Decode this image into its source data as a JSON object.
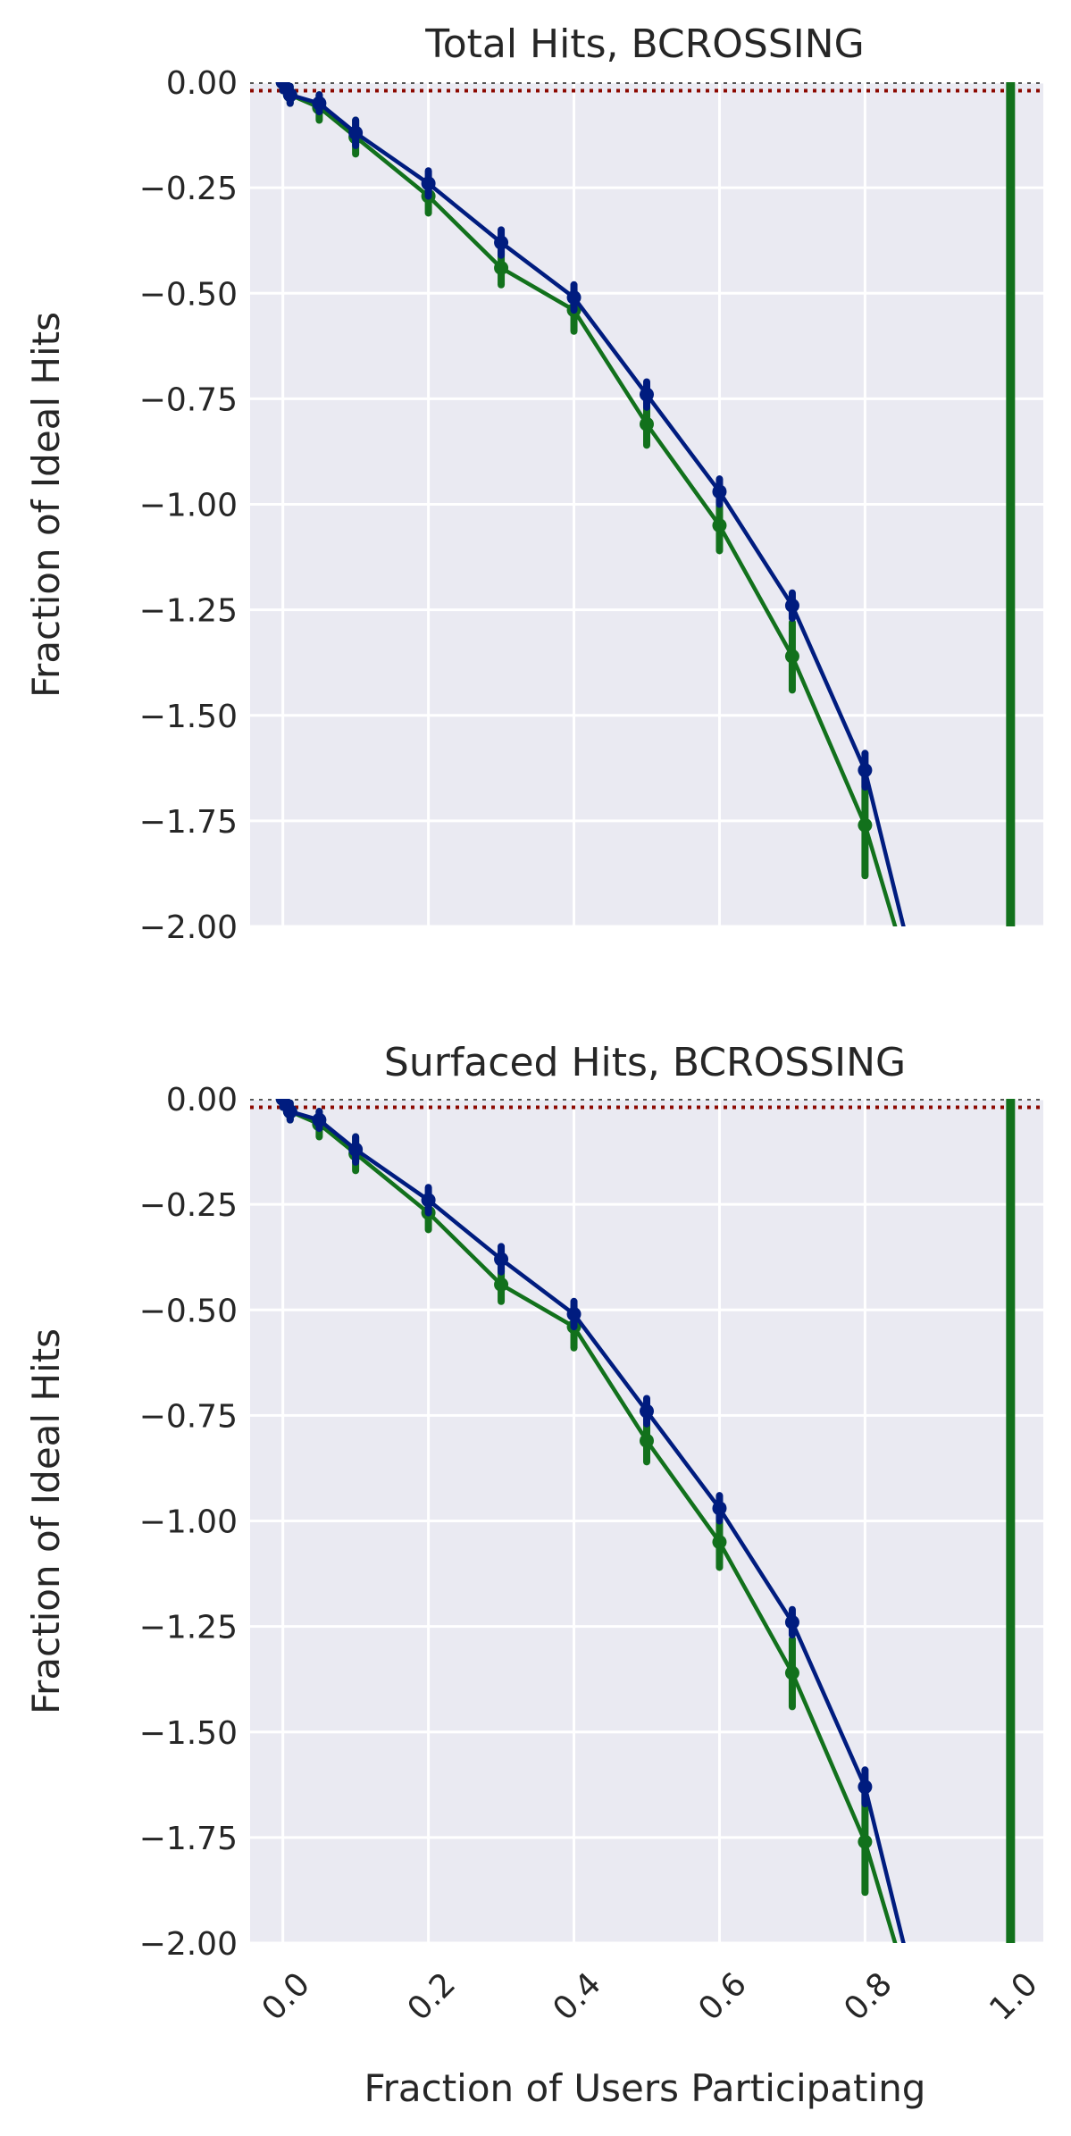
{
  "colors": {
    "background": "#eaeaf2",
    "grid": "#ffffff",
    "blue": "#001c7f",
    "green": "#12711c",
    "ref_red": "#8c0800",
    "ref_gray": "#555555"
  },
  "chart_data": [
    {
      "type": "line",
      "title": "Total Hits, BCROSSING",
      "xlabel": "",
      "ylabel": "Fraction of Ideal Hits",
      "xlim": [
        -0.045,
        1.045
      ],
      "ylim": [
        -2.0,
        0.0
      ],
      "xticks": [
        0.0,
        0.2,
        0.4,
        0.6,
        0.8,
        1.0
      ],
      "xtick_labels": [
        "0.0",
        "0.2",
        "0.4",
        "0.6",
        "0.8",
        "1.0"
      ],
      "yticks": [
        0.0,
        -0.25,
        -0.5,
        -0.75,
        -1.0,
        -1.25,
        -1.5,
        -1.75,
        -2.0
      ],
      "ytick_labels": [
        "0.00",
        "−0.25",
        "−0.50",
        "−0.75",
        "−1.00",
        "−1.25",
        "−1.50",
        "−1.75",
        "−2.00"
      ],
      "xticklabels_visible": false,
      "grid": true,
      "reference_lines": [
        {
          "orientation": "horizontal",
          "y": 0.0,
          "style": "dotted",
          "color": "#555555"
        },
        {
          "orientation": "horizontal",
          "y": -0.02,
          "style": "dotted",
          "color": "#8c0800"
        },
        {
          "orientation": "vertical",
          "x": 1.0,
          "style": "solid",
          "color": "#12711c"
        }
      ],
      "series": [
        {
          "color": "#12711c",
          "x": [
            0.0,
            0.01,
            0.05,
            0.1,
            0.2,
            0.3,
            0.4,
            0.5,
            0.6,
            0.7,
            0.8,
            0.85
          ],
          "y": [
            0.0,
            -0.03,
            -0.06,
            -0.13,
            -0.27,
            -0.44,
            -0.54,
            -0.81,
            -1.05,
            -1.36,
            -1.76,
            -2.05
          ],
          "err": [
            0.02,
            0.02,
            0.03,
            0.04,
            0.04,
            0.04,
            0.05,
            0.05,
            0.06,
            0.08,
            0.12,
            0.0
          ],
          "markers": [
            true,
            true,
            true,
            true,
            true,
            true,
            true,
            true,
            true,
            true,
            true,
            false
          ]
        },
        {
          "color": "#001c7f",
          "x": [
            0.0,
            0.01,
            0.05,
            0.1,
            0.2,
            0.3,
            0.4,
            0.5,
            0.6,
            0.7,
            0.8,
            0.86
          ],
          "y": [
            0.0,
            -0.03,
            -0.05,
            -0.12,
            -0.24,
            -0.38,
            -0.51,
            -0.74,
            -0.97,
            -1.24,
            -1.63,
            -2.05
          ],
          "err": [
            0.02,
            0.02,
            0.02,
            0.03,
            0.03,
            0.03,
            0.03,
            0.03,
            0.03,
            0.03,
            0.04,
            0.0
          ],
          "markers": [
            true,
            true,
            true,
            true,
            true,
            true,
            true,
            true,
            true,
            true,
            true,
            false
          ]
        }
      ]
    },
    {
      "type": "line",
      "title": "Surfaced Hits, BCROSSING",
      "xlabel": "Fraction of Users Participating",
      "ylabel": "Fraction of Ideal Hits",
      "xlim": [
        -0.045,
        1.045
      ],
      "ylim": [
        -2.0,
        0.0
      ],
      "xticks": [
        0.0,
        0.2,
        0.4,
        0.6,
        0.8,
        1.0
      ],
      "xtick_labels": [
        "0.0",
        "0.2",
        "0.4",
        "0.6",
        "0.8",
        "1.0"
      ],
      "yticks": [
        0.0,
        -0.25,
        -0.5,
        -0.75,
        -1.0,
        -1.25,
        -1.5,
        -1.75,
        -2.0
      ],
      "ytick_labels": [
        "0.00",
        "−0.25",
        "−0.50",
        "−0.75",
        "−1.00",
        "−1.25",
        "−1.50",
        "−1.75",
        "−2.00"
      ],
      "xticklabels_visible": true,
      "grid": true,
      "reference_lines": [
        {
          "orientation": "horizontal",
          "y": 0.0,
          "style": "dotted",
          "color": "#555555"
        },
        {
          "orientation": "horizontal",
          "y": -0.02,
          "style": "dotted",
          "color": "#8c0800"
        },
        {
          "orientation": "vertical",
          "x": 1.0,
          "style": "solid",
          "color": "#12711c"
        }
      ],
      "series": [
        {
          "color": "#12711c",
          "x": [
            0.0,
            0.01,
            0.05,
            0.1,
            0.2,
            0.3,
            0.4,
            0.5,
            0.6,
            0.7,
            0.8,
            0.85
          ],
          "y": [
            0.0,
            -0.03,
            -0.06,
            -0.13,
            -0.27,
            -0.44,
            -0.54,
            -0.81,
            -1.05,
            -1.36,
            -1.76,
            -2.05
          ],
          "err": [
            0.02,
            0.02,
            0.03,
            0.04,
            0.04,
            0.04,
            0.05,
            0.05,
            0.06,
            0.08,
            0.12,
            0.0
          ],
          "markers": [
            true,
            true,
            true,
            true,
            true,
            true,
            true,
            true,
            true,
            true,
            true,
            false
          ]
        },
        {
          "color": "#001c7f",
          "x": [
            0.0,
            0.01,
            0.05,
            0.1,
            0.2,
            0.3,
            0.4,
            0.5,
            0.6,
            0.7,
            0.8,
            0.86
          ],
          "y": [
            0.0,
            -0.03,
            -0.05,
            -0.12,
            -0.24,
            -0.38,
            -0.51,
            -0.74,
            -0.97,
            -1.24,
            -1.63,
            -2.05
          ],
          "err": [
            0.02,
            0.02,
            0.02,
            0.03,
            0.03,
            0.03,
            0.03,
            0.03,
            0.03,
            0.03,
            0.04,
            0.0
          ],
          "markers": [
            true,
            true,
            true,
            true,
            true,
            true,
            true,
            true,
            true,
            true,
            true,
            false
          ]
        }
      ]
    }
  ]
}
